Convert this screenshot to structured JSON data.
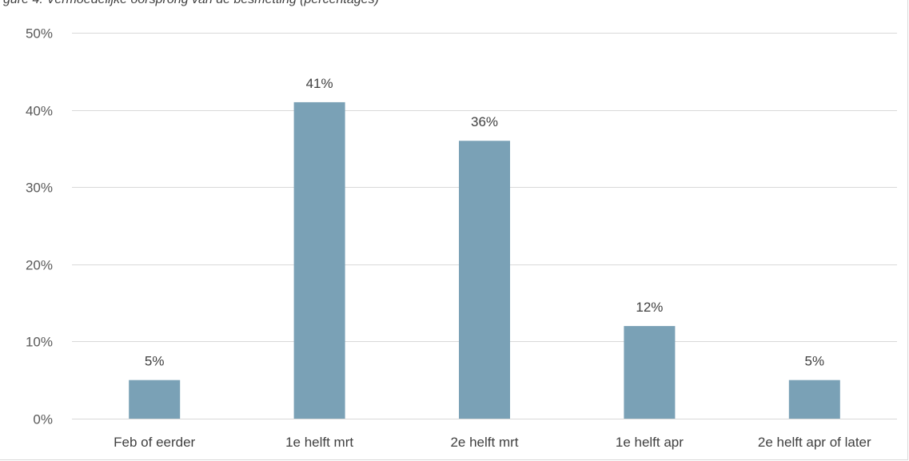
{
  "caption": "gure 4: Vermoedelijke oorsprong van de besmetting (percentages)",
  "chart_data": {
    "type": "bar",
    "title": "",
    "xlabel": "",
    "ylabel": "",
    "categories": [
      "Feb of eerder",
      "1e helft mrt",
      "2e helft mrt",
      "1e helft apr",
      "2e helft apr of later"
    ],
    "values": [
      5,
      41,
      36,
      12,
      5
    ],
    "data_labels": [
      "5%",
      "41%",
      "36%",
      "12%",
      "5%"
    ],
    "ylim": [
      0,
      50
    ],
    "yticks": [
      0,
      10,
      20,
      30,
      40,
      50
    ],
    "ytick_labels": [
      "0%",
      "10%",
      "20%",
      "30%",
      "40%",
      "50%"
    ],
    "grid": true,
    "bar_color": "#7aa1b6",
    "grid_color": "#d9d9d9"
  }
}
